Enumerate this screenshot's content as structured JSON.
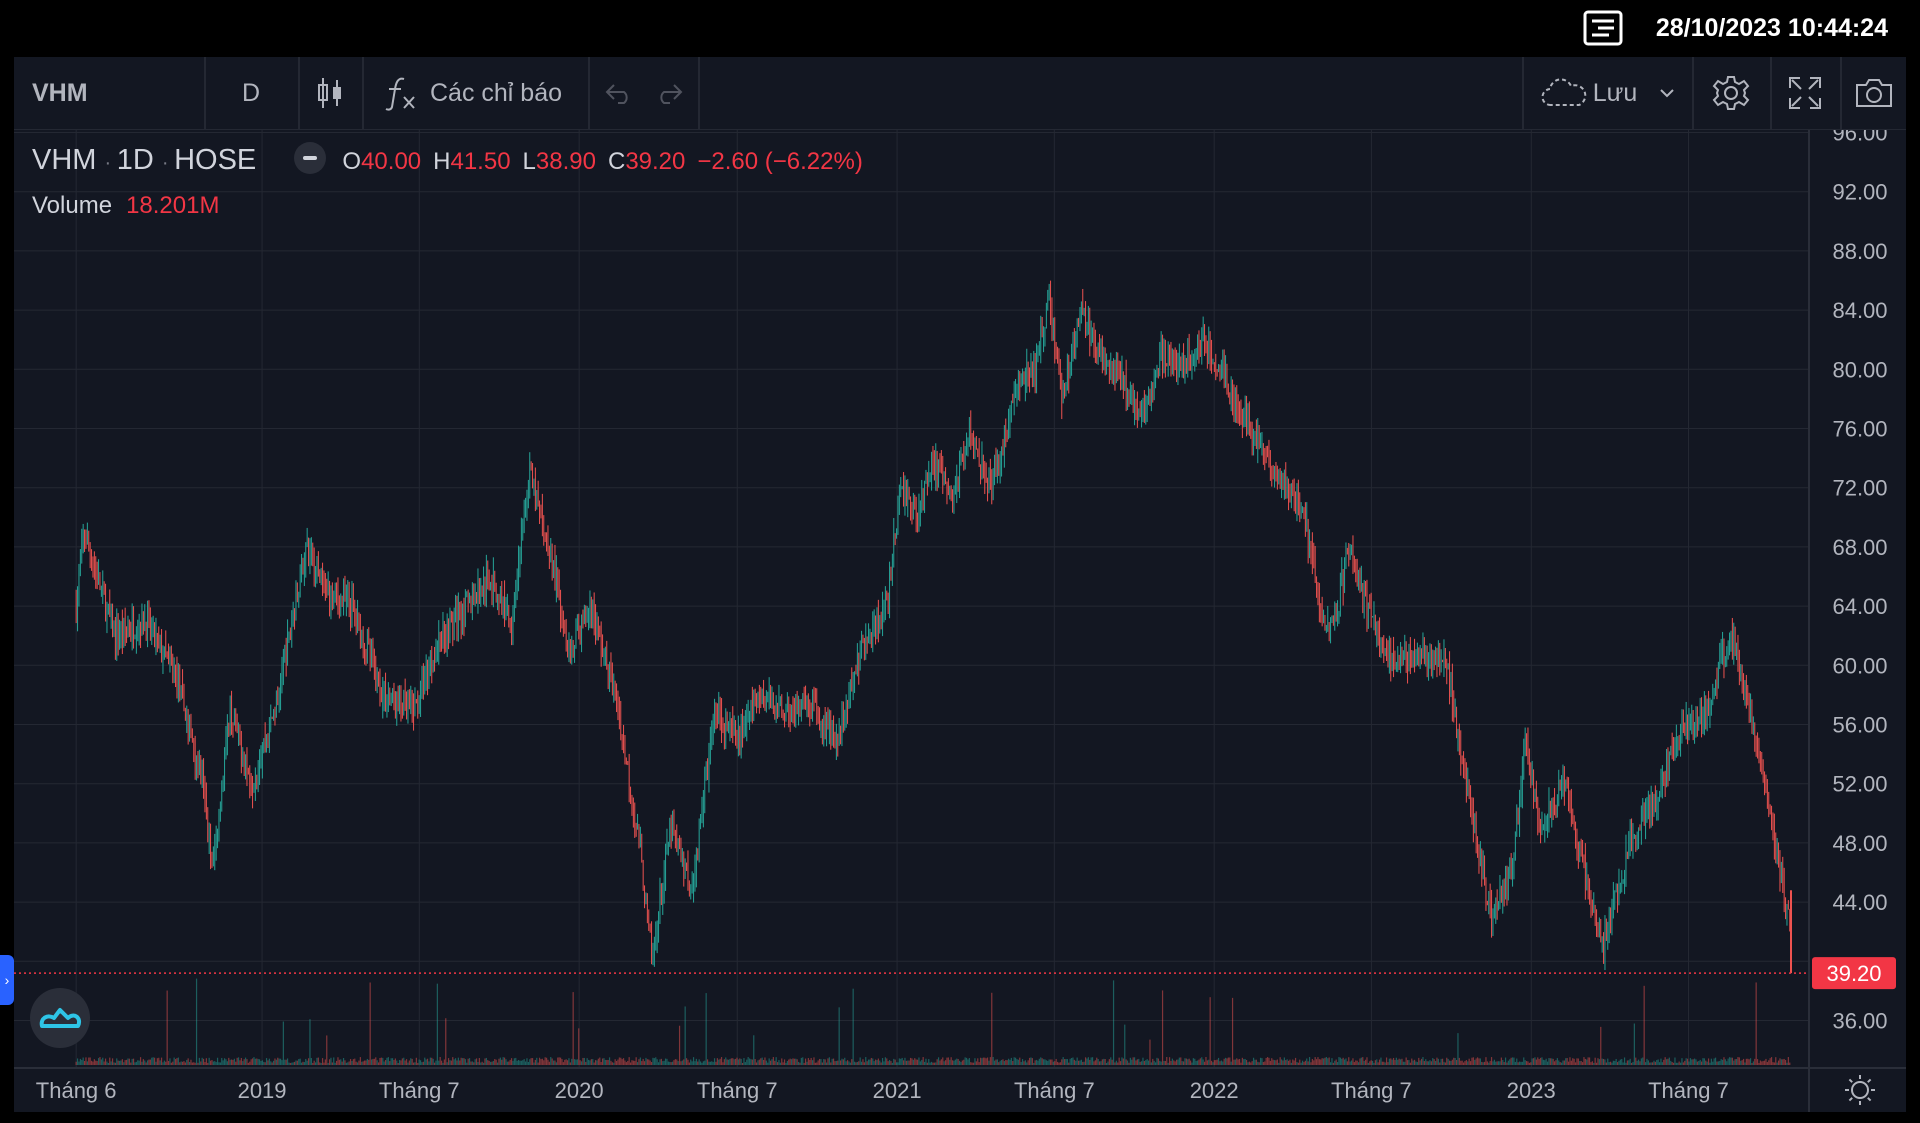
{
  "status_bar": {
    "datetime": "28/10/2023 10:44:24",
    "menu_icon": "list-icon"
  },
  "toolbar": {
    "symbol": "VHM",
    "interval": "D",
    "chart_type_icon": "candles-icon",
    "indicators_label": "Các chỉ báo",
    "indicators_icon": "fx-icon",
    "undo_icon": "undo-icon",
    "redo_icon": "redo-icon",
    "save_label": "Lưu",
    "cloud_icon": "cloud-icon",
    "settings_icon": "gear-icon",
    "fullscreen_icon": "fullscreen-icon",
    "snapshot_icon": "camera-icon"
  },
  "legend": {
    "symbol": "VHM",
    "interval": "1D",
    "exchange": "HOSE",
    "o_label": "O",
    "o": "40.00",
    "h_label": "H",
    "h": "41.50",
    "l_label": "L",
    "l": "38.90",
    "c_label": "C",
    "c": "39.20",
    "change": "−2.60 (−6.22%)",
    "volume_label": "Volume",
    "volume": "18.201M"
  },
  "colors": {
    "background": "#131722",
    "up": "#26a69a",
    "down": "#ef5350",
    "grid": "#242833",
    "last_price": "#f23645"
  },
  "chart_data": {
    "type": "candlestick",
    "symbol": "VHM",
    "interval": "1D",
    "ylim": [
      32,
      96
    ],
    "y_ticks": [
      "36.00",
      "40.00",
      "44.00",
      "48.00",
      "52.00",
      "56.00",
      "60.00",
      "64.00",
      "68.00",
      "72.00",
      "76.00",
      "80.00",
      "84.00",
      "88.00",
      "92.00",
      "96.00"
    ],
    "x_ticks": [
      "Tháng 6",
      "2019",
      "Tháng 7",
      "2020",
      "Tháng 7",
      "2021",
      "Tháng 7",
      "2022",
      "Tháng 7",
      "2023",
      "Tháng 7"
    ],
    "last_price": "39.20",
    "price_path": [
      [
        "2018-06-01",
        64
      ],
      [
        "2018-06-10",
        69
      ],
      [
        "2018-07-15",
        62
      ],
      [
        "2018-08-20",
        63
      ],
      [
        "2018-09-25",
        59
      ],
      [
        "2018-10-25",
        52
      ],
      [
        "2018-11-05",
        46
      ],
      [
        "2018-11-25",
        57
      ],
      [
        "2018-12-20",
        52
      ],
      [
        "2019-01-20",
        58
      ],
      [
        "2019-02-20",
        68
      ],
      [
        "2019-03-15",
        65
      ],
      [
        "2019-04-15",
        64
      ],
      [
        "2019-05-20",
        58
      ],
      [
        "2019-06-25",
        57
      ],
      [
        "2019-07-25",
        62
      ],
      [
        "2019-08-25",
        64
      ],
      [
        "2019-09-20",
        66
      ],
      [
        "2019-10-15",
        63
      ],
      [
        "2019-11-05",
        73
      ],
      [
        "2019-12-01",
        67
      ],
      [
        "2019-12-20",
        61
      ],
      [
        "2020-01-15",
        64
      ],
      [
        "2020-02-15",
        57
      ],
      [
        "2020-03-10",
        48
      ],
      [
        "2020-03-25",
        40
      ],
      [
        "2020-04-15",
        49
      ],
      [
        "2020-05-10",
        45
      ],
      [
        "2020-06-05",
        57
      ],
      [
        "2020-07-01",
        55
      ],
      [
        "2020-07-25",
        58
      ],
      [
        "2020-08-25",
        57
      ],
      [
        "2020-09-25",
        57
      ],
      [
        "2020-10-25",
        55
      ],
      [
        "2020-11-20",
        61
      ],
      [
        "2020-12-20",
        64
      ],
      [
        "2021-01-05",
        72
      ],
      [
        "2021-01-25",
        70
      ],
      [
        "2021-02-10",
        74
      ],
      [
        "2021-03-05",
        71
      ],
      [
        "2021-03-25",
        76
      ],
      [
        "2021-04-20",
        72
      ],
      [
        "2021-05-20",
        79
      ],
      [
        "2021-06-10",
        80
      ],
      [
        "2021-06-25",
        85
      ],
      [
        "2021-07-10",
        78
      ],
      [
        "2021-08-01",
        84
      ],
      [
        "2021-08-20",
        81
      ],
      [
        "2021-09-20",
        79
      ],
      [
        "2021-10-10",
        77
      ],
      [
        "2021-11-01",
        81
      ],
      [
        "2021-11-25",
        80
      ],
      [
        "2021-12-20",
        82
      ],
      [
        "2022-01-10",
        80
      ],
      [
        "2022-02-01",
        77
      ],
      [
        "2022-03-01",
        74
      ],
      [
        "2022-03-25",
        72
      ],
      [
        "2022-04-15",
        70
      ],
      [
        "2022-05-10",
        62
      ],
      [
        "2022-05-20",
        63
      ],
      [
        "2022-06-05",
        68
      ],
      [
        "2022-06-25",
        64
      ],
      [
        "2022-07-25",
        60
      ],
      [
        "2022-08-25",
        61
      ],
      [
        "2022-09-25",
        60
      ],
      [
        "2022-10-25",
        50
      ],
      [
        "2022-11-15",
        43
      ],
      [
        "2022-12-10",
        46
      ],
      [
        "2022-12-25",
        55
      ],
      [
        "2023-01-10",
        49
      ],
      [
        "2023-02-10",
        52
      ],
      [
        "2023-03-10",
        44
      ],
      [
        "2023-03-25",
        41
      ],
      [
        "2023-04-25",
        48
      ],
      [
        "2023-05-25",
        51
      ],
      [
        "2023-06-25",
        56
      ],
      [
        "2023-07-25",
        57
      ],
      [
        "2023-08-05",
        60
      ],
      [
        "2023-08-20",
        62
      ],
      [
        "2023-09-10",
        57
      ],
      [
        "2023-09-25",
        53
      ],
      [
        "2023-10-15",
        46
      ],
      [
        "2023-10-26",
        42
      ],
      [
        "2023-10-27",
        39.2
      ]
    ]
  },
  "footer": {
    "chart_settings_icon": "sun-icon"
  },
  "side": {
    "brand_icon": "tradingview-logo-icon",
    "handle_icon": "chevron-right-icon"
  }
}
